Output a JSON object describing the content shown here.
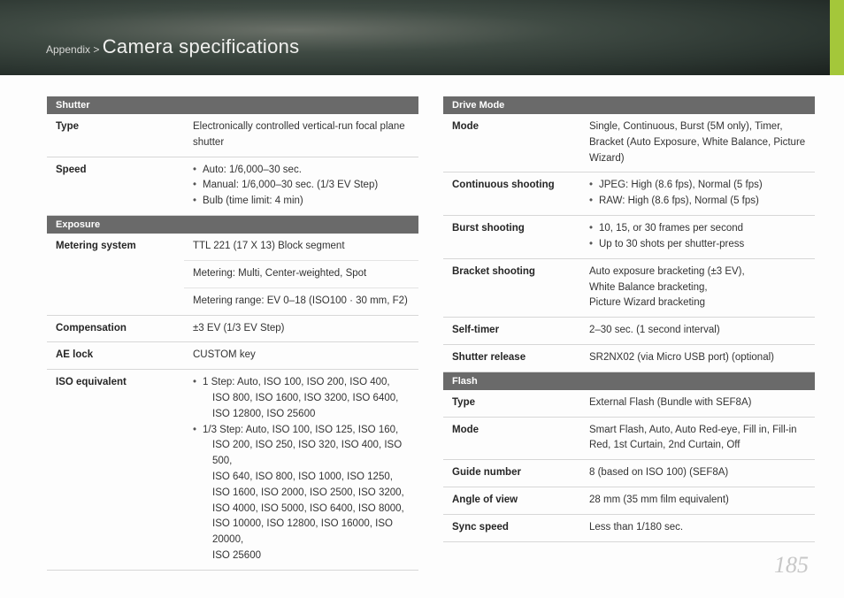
{
  "header": {
    "breadcrumb_prefix": "Appendix > ",
    "title": "Camera specifications"
  },
  "left": {
    "sections": [
      {
        "title": "Shutter",
        "rows": [
          {
            "label": "Type",
            "text": "Electronically controlled vertical-run focal plane shutter"
          },
          {
            "label": "Speed",
            "bullets": [
              "Auto: 1/6,000–30 sec.",
              "Manual: 1/6,000–30 sec. (1/3 EV Step)",
              "Bulb (time limit: 4 min)"
            ]
          }
        ]
      },
      {
        "title": "Exposure",
        "rows": [
          {
            "label": "Metering system",
            "multi": [
              "TTL 221 (17 X 13) Block segment",
              "Metering: Multi, Center-weighted, Spot",
              "Metering range: EV 0–18 (ISO100 · 30 mm, F2)"
            ]
          },
          {
            "label": "Compensation",
            "text": "±3 EV (1/3 EV Step)"
          },
          {
            "label": "AE lock",
            "text": "CUSTOM key"
          },
          {
            "label": "ISO equivalent",
            "bullets_wrapped": [
              {
                "lead": "1 Step: Auto, ISO 100, ISO 200, ISO 400,",
                "cont": [
                  "ISO 800, ISO 1600, ISO 3200, ISO 6400,",
                  "ISO 12800, ISO 25600"
                ]
              },
              {
                "lead": "1/3 Step: Auto, ISO 100, ISO 125, ISO 160,",
                "cont": [
                  "ISO 200, ISO 250, ISO 320, ISO 400, ISO 500,",
                  "ISO 640, ISO 800, ISO 1000, ISO 1250,",
                  "ISO 1600, ISO 2000, ISO 2500, ISO 3200,",
                  "ISO 4000, ISO 5000, ISO 6400, ISO 8000,",
                  "ISO 10000, ISO 12800, ISO 16000, ISO 20000,",
                  "ISO 25600"
                ]
              }
            ]
          }
        ]
      }
    ]
  },
  "right": {
    "sections": [
      {
        "title": "Drive Mode",
        "rows": [
          {
            "label": "Mode",
            "text": "Single, Continuous, Burst (5M only), Timer, Bracket (Auto Exposure, White Balance, Picture Wizard)"
          },
          {
            "label": "Continuous shooting",
            "bullets": [
              "JPEG: High (8.6 fps), Normal (5 fps)",
              "RAW: High (8.6 fps), Normal (5 fps)"
            ]
          },
          {
            "label": "Burst shooting",
            "bullets": [
              "10, 15, or 30 frames per second",
              "Up to 30 shots per shutter-press"
            ]
          },
          {
            "label": "Bracket shooting",
            "lines": [
              "Auto exposure bracketing (±3 EV),",
              "White Balance bracketing,",
              "Picture Wizard bracketing"
            ]
          },
          {
            "label": "Self-timer",
            "text": "2–30 sec. (1 second interval)"
          },
          {
            "label": "Shutter release",
            "text": "SR2NX02 (via Micro USB port) (optional)"
          }
        ]
      },
      {
        "title": "Flash",
        "rows": [
          {
            "label": "Type",
            "text": "External Flash (Bundle with SEF8A)"
          },
          {
            "label": "Mode",
            "text": "Smart Flash, Auto, Auto Red-eye, Fill in, Fill-in Red, 1st Curtain, 2nd Curtain, Off"
          },
          {
            "label": "Guide number",
            "text": "8 (based on ISO 100) (SEF8A)"
          },
          {
            "label": "Angle of view",
            "text": "28 mm (35 mm film equivalent)"
          },
          {
            "label": "Sync speed",
            "text": "Less than 1/180 sec."
          }
        ]
      }
    ]
  },
  "page_number": "185"
}
